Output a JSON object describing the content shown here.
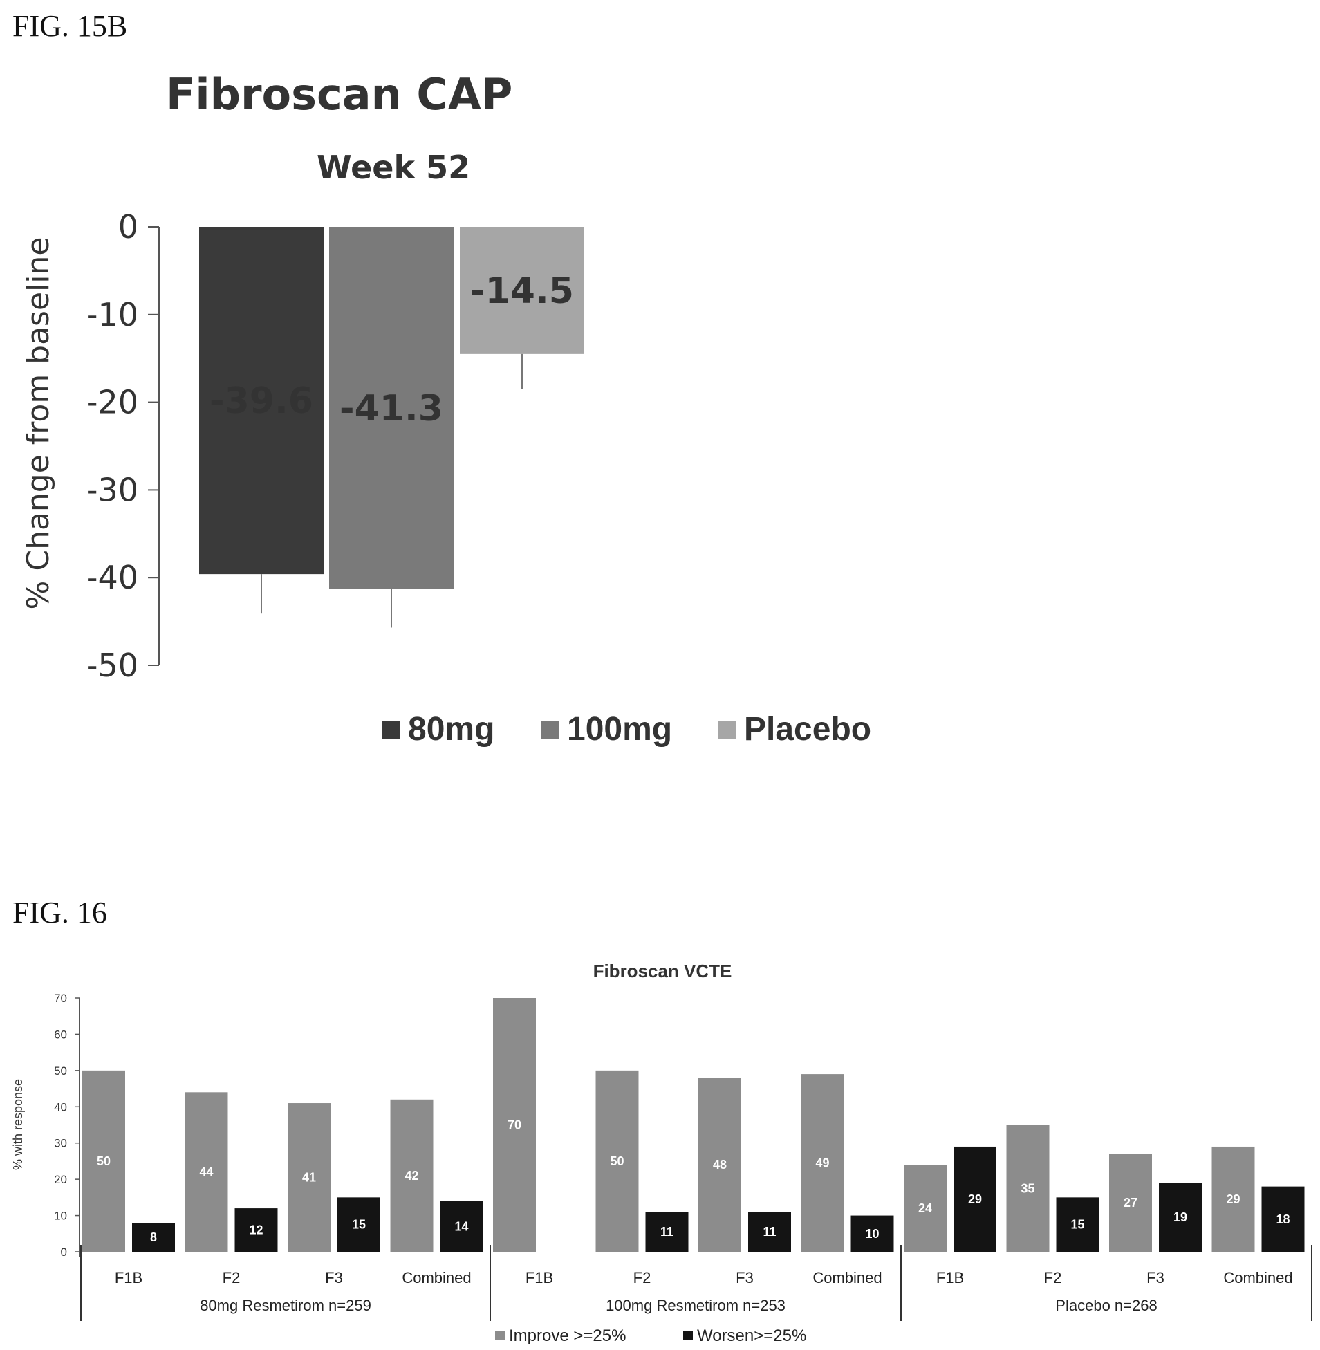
{
  "figures": [
    {
      "label": "FIG. 15B"
    },
    {
      "label": "FIG. 16"
    }
  ],
  "chart_data": [
    {
      "type": "bar",
      "title": "Fibroscan CAP",
      "subtitle": "Week 52",
      "ylabel": "% Change from baseline",
      "ylim": [
        -50,
        0
      ],
      "yticks": [
        0,
        -10,
        -20,
        -30,
        -40,
        -50
      ],
      "series": [
        {
          "name": "80mg",
          "value": -39.6,
          "error": 4.5,
          "label": "-39.6",
          "color": "#3a3a3a"
        },
        {
          "name": "100mg",
          "value": -41.3,
          "error": 4.4,
          "label": "-41.3",
          "color": "#7a7a7a"
        },
        {
          "name": "Placebo",
          "value": -14.5,
          "error": 4.0,
          "label": "-14.5",
          "color": "#a6a6a6"
        }
      ],
      "legend_position": "bottom"
    },
    {
      "type": "bar",
      "title": "Fibroscan VCTE",
      "ylabel": "% with response",
      "ylim": [
        0,
        70
      ],
      "yticks": [
        0,
        10,
        20,
        30,
        40,
        50,
        60,
        70
      ],
      "groups": [
        {
          "name": "80mg Resmetirom n=259",
          "categories": [
            "F1B",
            "F2",
            "F3",
            "Combined"
          ]
        },
        {
          "name": "100mg Resmetirom n=253",
          "categories": [
            "F1B",
            "F2",
            "F3",
            "Combined"
          ]
        },
        {
          "name": "Placebo n=268",
          "categories": [
            "F1B",
            "F2",
            "F3",
            "Combined"
          ]
        }
      ],
      "series": [
        {
          "name": "Improve >=25%",
          "color": "#8c8c8c",
          "values": [
            50,
            44,
            41,
            42,
            70,
            50,
            48,
            49,
            24,
            35,
            27,
            29
          ],
          "labels": [
            "50",
            "44",
            "41",
            "42",
            "70",
            "50",
            "48",
            "49",
            "24",
            "35",
            "27",
            "29"
          ]
        },
        {
          "name": "Worsen>=25%",
          "color": "#141414",
          "values": [
            8,
            12,
            15,
            14,
            null,
            11,
            11,
            10,
            29,
            15,
            19,
            18
          ],
          "labels": [
            "8",
            "12",
            "15",
            "14",
            "",
            "11",
            "11",
            "10",
            "29",
            "15",
            "19",
            "18"
          ]
        }
      ],
      "legend_position": "bottom"
    }
  ]
}
